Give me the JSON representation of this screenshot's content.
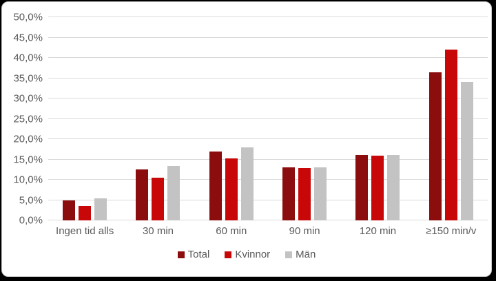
{
  "colors": {
    "total": "#8b0d0e",
    "kvinnor": "#c80808",
    "man": "#c3c3c4",
    "gridline": "#d9d9d9",
    "axis_text": "#595959",
    "chart_background": "#ffffff",
    "outer_background": "#000000",
    "card_border": "#c9c9c9"
  },
  "chart_data": {
    "type": "bar",
    "title": "",
    "categories": [
      "Ingen tid alls",
      "30 min",
      "60 min",
      "90 min",
      "120 min",
      "≥150 min/v"
    ],
    "series": [
      {
        "name": "Total",
        "color": "#8b0d0e",
        "values": [
          5.0,
          12.5,
          17.0,
          13.0,
          16.1,
          36.5
        ]
      },
      {
        "name": "Kvinnor",
        "color": "#c80808",
        "values": [
          3.6,
          10.5,
          15.3,
          12.9,
          15.9,
          42.0
        ]
      },
      {
        "name": "Män",
        "color": "#c3c3c4",
        "values": [
          5.5,
          13.4,
          18.0,
          13.0,
          16.1,
          34.0
        ]
      }
    ],
    "xlabel": "",
    "ylabel": "",
    "ylim": [
      0,
      50
    ],
    "ytick_step": 5,
    "ytick_labels": [
      "0,0%",
      "5,0%",
      "10,0%",
      "15,0%",
      "20,0%",
      "25,0%",
      "30,0%",
      "35,0%",
      "40,0%",
      "45,0%",
      "50,0%"
    ],
    "grid": true,
    "legend_position": "bottom"
  }
}
